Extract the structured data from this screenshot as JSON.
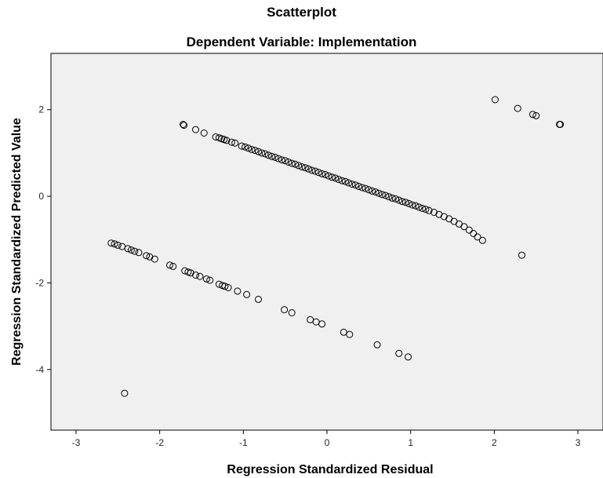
{
  "chart_data": {
    "type": "scatter",
    "title": "Scatterplot",
    "subtitle": "Dependent Variable: Implementation",
    "xlabel": "Regression Standardized Residual",
    "ylabel": "Regression Standardized Predicted Value",
    "xlim": [
      -3.3,
      3.3
    ],
    "ylim": [
      -5.4,
      3.3
    ],
    "xticks": [
      -3,
      -2,
      -1,
      0,
      1,
      2,
      3
    ],
    "yticks": [
      2,
      0,
      -2,
      -4
    ],
    "grid": false,
    "colors": {
      "plot_background": "#f0f0f0",
      "marker_stroke": "#000000"
    },
    "series": [
      {
        "points": [
          [
            -1.72,
            1.66
          ],
          [
            -1.71,
            1.64
          ],
          [
            -1.57,
            1.54
          ],
          [
            -1.47,
            1.46
          ],
          [
            -1.33,
            1.37
          ],
          [
            -1.29,
            1.35
          ],
          [
            -1.26,
            1.33
          ],
          [
            -1.23,
            1.31
          ],
          [
            -1.2,
            1.29
          ],
          [
            -1.14,
            1.25
          ],
          [
            -1.1,
            1.23
          ],
          [
            -1.02,
            1.16
          ],
          [
            -0.98,
            1.14
          ],
          [
            -0.94,
            1.11
          ],
          [
            -0.9,
            1.08
          ],
          [
            -0.86,
            1.06
          ],
          [
            -0.82,
            1.03
          ],
          [
            -0.78,
            1.0
          ],
          [
            -0.74,
            0.98
          ],
          [
            -0.7,
            0.95
          ],
          [
            -0.66,
            0.92
          ],
          [
            -0.62,
            0.9
          ],
          [
            -0.58,
            0.87
          ],
          [
            -0.54,
            0.84
          ],
          [
            -0.5,
            0.82
          ],
          [
            -0.46,
            0.79
          ],
          [
            -0.42,
            0.76
          ],
          [
            -0.38,
            0.74
          ],
          [
            -0.34,
            0.71
          ],
          [
            -0.3,
            0.68
          ],
          [
            -0.26,
            0.66
          ],
          [
            -0.22,
            0.63
          ],
          [
            -0.18,
            0.6
          ],
          [
            -0.14,
            0.58
          ],
          [
            -0.1,
            0.55
          ],
          [
            -0.06,
            0.52
          ],
          [
            -0.02,
            0.5
          ],
          [
            0.02,
            0.47
          ],
          [
            0.06,
            0.44
          ],
          [
            0.1,
            0.42
          ],
          [
            0.14,
            0.39
          ],
          [
            0.18,
            0.36
          ],
          [
            0.22,
            0.34
          ],
          [
            0.26,
            0.31
          ],
          [
            0.3,
            0.28
          ],
          [
            0.34,
            0.26
          ],
          [
            0.38,
            0.23
          ],
          [
            0.42,
            0.2
          ],
          [
            0.46,
            0.18
          ],
          [
            0.5,
            0.15
          ],
          [
            0.54,
            0.12
          ],
          [
            0.58,
            0.1
          ],
          [
            0.62,
            0.07
          ],
          [
            0.66,
            0.04
          ],
          [
            0.7,
            0.02
          ],
          [
            0.74,
            -0.01
          ],
          [
            0.78,
            -0.04
          ],
          [
            0.82,
            -0.06
          ],
          [
            0.86,
            -0.09
          ],
          [
            0.9,
            -0.12
          ],
          [
            0.94,
            -0.14
          ],
          [
            0.98,
            -0.17
          ],
          [
            1.02,
            -0.2
          ],
          [
            1.06,
            -0.22
          ],
          [
            1.1,
            -0.25
          ],
          [
            1.14,
            -0.28
          ],
          [
            1.18,
            -0.3
          ],
          [
            1.22,
            -0.33
          ],
          [
            1.28,
            -0.37
          ],
          [
            1.34,
            -0.42
          ],
          [
            1.4,
            -0.47
          ],
          [
            1.46,
            -0.52
          ],
          [
            1.52,
            -0.58
          ],
          [
            1.58,
            -0.64
          ],
          [
            1.64,
            -0.7
          ],
          [
            1.7,
            -0.78
          ],
          [
            1.75,
            -0.86
          ],
          [
            1.8,
            -0.94
          ],
          [
            1.86,
            -1.02
          ],
          [
            2.01,
            2.23
          ],
          [
            2.28,
            2.03
          ],
          [
            2.46,
            1.89
          ],
          [
            2.5,
            1.86
          ],
          [
            2.78,
            1.66
          ],
          [
            2.79,
            1.66
          ],
          [
            2.33,
            -1.36
          ],
          [
            -2.58,
            -1.08
          ],
          [
            -2.54,
            -1.1
          ],
          [
            -2.5,
            -1.13
          ],
          [
            -2.45,
            -1.16
          ],
          [
            -2.38,
            -1.21
          ],
          [
            -2.34,
            -1.24
          ],
          [
            -2.3,
            -1.27
          ],
          [
            -2.25,
            -1.3
          ],
          [
            -2.16,
            -1.37
          ],
          [
            -2.12,
            -1.4
          ],
          [
            -2.06,
            -1.45
          ],
          [
            -1.88,
            -1.59
          ],
          [
            -1.84,
            -1.62
          ],
          [
            -1.7,
            -1.72
          ],
          [
            -1.66,
            -1.75
          ],
          [
            -1.63,
            -1.77
          ],
          [
            -1.57,
            -1.82
          ],
          [
            -1.52,
            -1.85
          ],
          [
            -1.44,
            -1.91
          ],
          [
            -1.4,
            -1.94
          ],
          [
            -1.29,
            -2.03
          ],
          [
            -1.25,
            -2.06
          ],
          [
            -1.22,
            -2.08
          ],
          [
            -1.18,
            -2.11
          ],
          [
            -1.07,
            -2.19
          ],
          [
            -0.96,
            -2.27
          ],
          [
            -0.82,
            -2.38
          ],
          [
            -0.51,
            -2.62
          ],
          [
            -0.42,
            -2.69
          ],
          [
            -0.2,
            -2.85
          ],
          [
            -0.13,
            -2.9
          ],
          [
            -0.06,
            -2.95
          ],
          [
            0.2,
            -3.14
          ],
          [
            0.27,
            -3.19
          ],
          [
            0.6,
            -3.43
          ],
          [
            0.86,
            -3.63
          ],
          [
            0.97,
            -3.71
          ],
          [
            -2.42,
            -4.55
          ]
        ]
      }
    ]
  }
}
